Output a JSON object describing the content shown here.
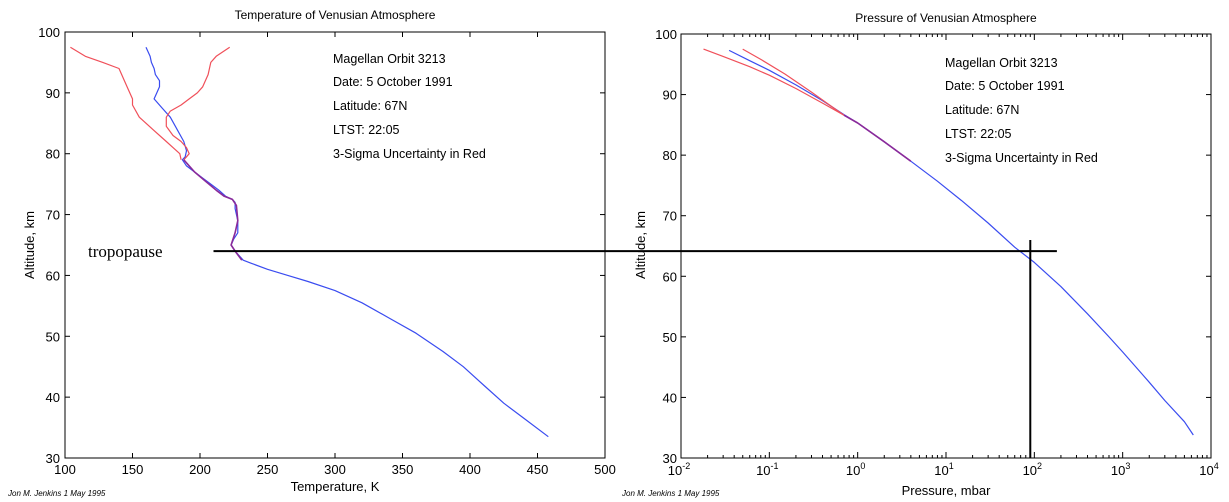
{
  "colors": {
    "profile": "#3a4cf0",
    "uncertainty": "#f0505a",
    "overlap": "#8a2a9a",
    "axis": "#000000",
    "marker": "#000000"
  },
  "marker_label": "tropopause",
  "chart_data": [
    {
      "type": "line",
      "title": "Temperature of Venusian Atmosphere",
      "xlabel": "Temperature, K",
      "ylabel": "Altitude, km",
      "xlim": [
        100,
        500
      ],
      "ylim": [
        30,
        100
      ],
      "xticks": [
        "100",
        "150",
        "200",
        "250",
        "300",
        "350",
        "400",
        "450",
        "500"
      ],
      "yticks": [
        "30",
        "40",
        "50",
        "60",
        "70",
        "80",
        "90",
        "100"
      ],
      "grid": false,
      "annotations": [
        "Magellan Orbit 3213",
        "Date: 5 October 1991",
        "Latitude: 67N",
        "LTST: 22:05",
        "3-Sigma Uncertainty in Red"
      ],
      "credit": "Jon M. Jenkins  1 May 1995",
      "series": [
        {
          "role": "profile",
          "color": "#3a4cf0",
          "x": [
            160,
            163,
            164,
            166,
            167,
            170,
            170,
            168,
            166,
            172,
            178,
            183,
            188,
            190,
            189,
            187,
            190,
            196,
            202,
            208,
            214,
            219,
            224,
            226,
            226,
            228,
            228,
            225,
            223,
            226,
            230,
            232,
            238,
            250,
            265,
            280,
            300,
            320,
            340,
            360,
            380,
            395,
            410,
            425,
            440,
            458
          ],
          "y": [
            97.5,
            96,
            95,
            94,
            93,
            92,
            91,
            90,
            89,
            87.5,
            86,
            84,
            82,
            80.5,
            79.5,
            79,
            78,
            77,
            76,
            75,
            74,
            73,
            72.5,
            72,
            71,
            69,
            67,
            66,
            65,
            64,
            63,
            62.5,
            62,
            61,
            60,
            59,
            57.5,
            55.5,
            53,
            50.5,
            47.5,
            45,
            42,
            39,
            36.5,
            33.5
          ]
        },
        {
          "role": "uncertainty-low",
          "color": "#f0505a",
          "x": [
            104,
            115,
            128,
            140,
            144,
            147,
            150,
            150,
            155,
            165,
            175,
            180,
            185,
            186
          ],
          "y": [
            97.5,
            96,
            95,
            94,
            92,
            90.5,
            89,
            88,
            86,
            84,
            82,
            81,
            80,
            79
          ]
        },
        {
          "role": "uncertainty-high",
          "color": "#f0505a",
          "x": [
            222,
            212,
            208,
            206,
            202,
            198,
            192,
            186,
            178,
            175,
            175,
            180,
            186,
            190,
            192,
            190,
            188
          ],
          "y": [
            97.5,
            96,
            95,
            93,
            91,
            90,
            89,
            88,
            87,
            86,
            84.5,
            83,
            82,
            81,
            80,
            79.5,
            79
          ]
        },
        {
          "role": "overlap",
          "color": "#8a2a9a",
          "x": [
            188,
            196,
            204,
            212,
            218,
            224,
            227,
            228,
            226,
            223,
            226,
            231
          ],
          "y": [
            79,
            77,
            75.5,
            74,
            73,
            72.5,
            71.5,
            69,
            67,
            65,
            64,
            62.5
          ]
        }
      ]
    },
    {
      "type": "line",
      "title": "Pressure of Venusian Atmosphere",
      "xlabel": "Pressure, mbar",
      "ylabel": "Altitude, km",
      "xscale": "log",
      "xlim": [
        0.01,
        10000
      ],
      "ylim": [
        30,
        100
      ],
      "xticks": [
        "10-2",
        "10-1",
        "100",
        "101",
        "102",
        "103",
        "104"
      ],
      "yticks": [
        "30",
        "40",
        "50",
        "60",
        "70",
        "80",
        "90",
        "100"
      ],
      "grid": false,
      "annotations": [
        "Magellan Orbit 3213",
        "Date: 5 October 1991",
        "Latitude: 67N",
        "LTST: 22:05",
        "3-Sigma Uncertainty in Red"
      ],
      "credit": "Jon M. Jenkins  1 May 1995",
      "series": [
        {
          "role": "profile",
          "color": "#3a4cf0",
          "x": [
            0.035,
            0.06,
            0.1,
            0.2,
            0.4,
            0.7,
            1,
            2,
            4,
            8,
            15,
            30,
            60,
            100,
            200,
            400,
            700,
            1000,
            2000,
            3000,
            5000,
            6300
          ],
          "y": [
            97.3,
            95.6,
            94,
            91.6,
            89,
            86.7,
            85.3,
            82.2,
            79,
            75.7,
            72.5,
            68.8,
            64.8,
            62.3,
            58.3,
            53.8,
            50,
            47.5,
            42.5,
            39.5,
            36,
            33.8
          ]
        },
        {
          "role": "uncertainty-low",
          "color": "#f0505a",
          "x": [
            0.018,
            0.03,
            0.06,
            0.1,
            0.2,
            0.4,
            0.7
          ],
          "y": [
            97.5,
            96.3,
            94.6,
            93.2,
            91,
            88.6,
            86.6
          ]
        },
        {
          "role": "uncertainty-high",
          "color": "#f0505a",
          "x": [
            0.05,
            0.08,
            0.15,
            0.3,
            0.5,
            0.7
          ],
          "y": [
            97.5,
            95.8,
            93.4,
            90.4,
            88.1,
            86.6
          ]
        },
        {
          "role": "overlap",
          "color": "#8a2a9a",
          "x": [
            0.7,
            1,
            2,
            4
          ],
          "y": [
            86.6,
            85.3,
            82.2,
            79
          ]
        }
      ],
      "markers": [
        {
          "type": "horizontal",
          "from_panel": "temperature",
          "x_start": 210,
          "x_end": 180,
          "y": 64
        },
        {
          "type": "vertical",
          "x": 90,
          "y_from": 30,
          "y_to": 66
        }
      ]
    }
  ]
}
